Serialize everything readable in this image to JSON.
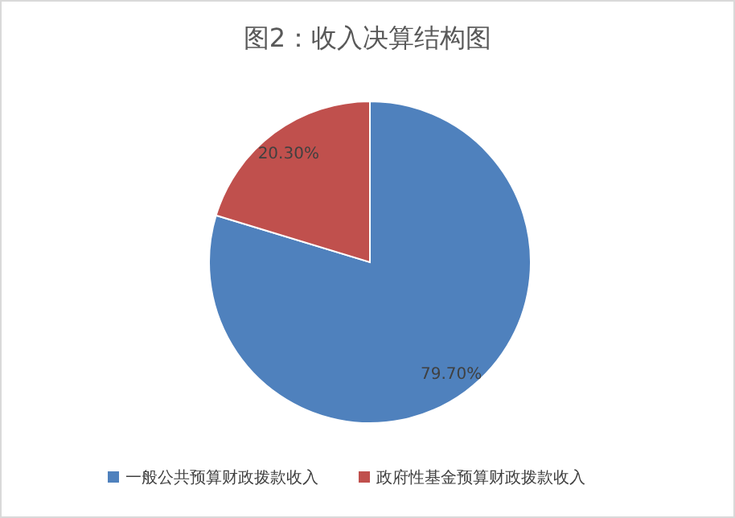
{
  "chart_data": {
    "type": "pie",
    "title": "图2：收入决算结构图",
    "categories": [
      "一般公共预算财政拨款收入",
      "政府性基金预算财政拨款收入"
    ],
    "values": [
      79.7,
      20.3
    ],
    "colors": [
      "#4f81bd",
      "#c0504d"
    ],
    "value_labels": [
      "79.70%",
      "20.30%"
    ],
    "legend": "bottom"
  }
}
